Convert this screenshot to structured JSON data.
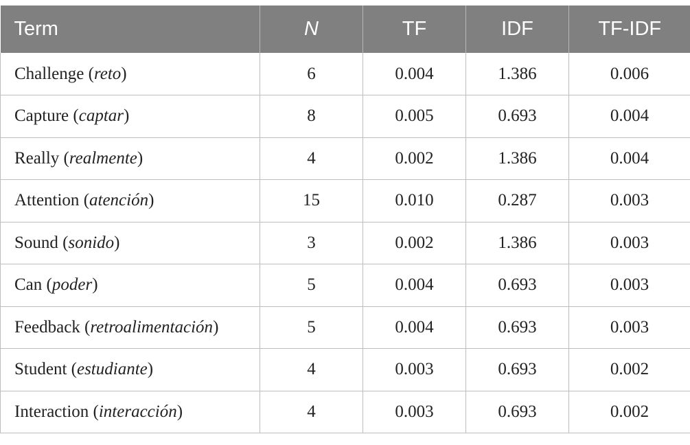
{
  "table": {
    "headers": [
      "Term",
      "N",
      "TF",
      "IDF",
      "TF-IDF"
    ],
    "rows": [
      {
        "term": "Challenge",
        "spanish": "reto",
        "n": "6",
        "tf": "0.004",
        "idf": "1.386",
        "tfidf": "0.006"
      },
      {
        "term": "Capture",
        "spanish": "captar",
        "n": "8",
        "tf": "0.005",
        "idf": "0.693",
        "tfidf": "0.004"
      },
      {
        "term": "Really",
        "spanish": "realmente",
        "n": "4",
        "tf": "0.002",
        "idf": "1.386",
        "tfidf": "0.004"
      },
      {
        "term": "Attention",
        "spanish": "atención",
        "n": "15",
        "tf": "0.010",
        "idf": "0.287",
        "tfidf": "0.003"
      },
      {
        "term": "Sound",
        "spanish": "sonido",
        "n": "3",
        "tf": "0.002",
        "idf": "1.386",
        "tfidf": "0.003"
      },
      {
        "term": "Can",
        "spanish": "poder",
        "n": "5",
        "tf": "0.004",
        "idf": "0.693",
        "tfidf": "0.003"
      },
      {
        "term": "Feedback",
        "spanish": "retroalimentación",
        "n": "5",
        "tf": "0.004",
        "idf": "0.693",
        "tfidf": "0.003"
      },
      {
        "term": "Student",
        "spanish": "estudiante",
        "n": "4",
        "tf": "0.003",
        "idf": "0.693",
        "tfidf": "0.002"
      },
      {
        "term": "Interaction",
        "spanish": "interacción",
        "n": "4",
        "tf": "0.003",
        "idf": "0.693",
        "tfidf": "0.002"
      }
    ]
  }
}
